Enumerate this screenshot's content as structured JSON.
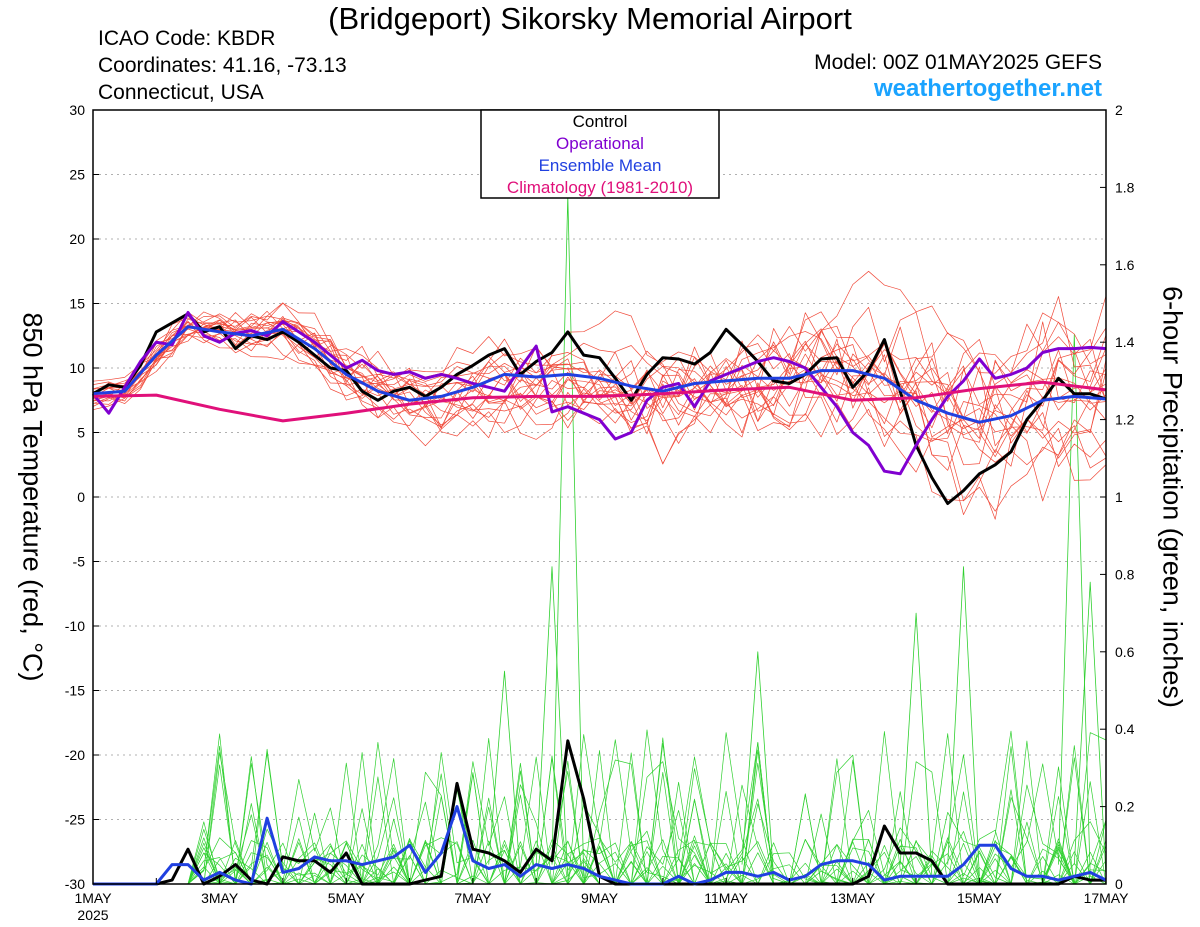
{
  "header": {
    "title": "(Bridgeport) Sikorsky Memorial Airport",
    "icao": "ICAO Code: KBDR",
    "coordinates": "Coordinates: 41.16, -73.13",
    "location": "Connecticut, USA",
    "model": "Model: 00Z 01MAY2025 GEFS",
    "site": "weathertogether.net"
  },
  "chart_data": {
    "type": "line",
    "title": "(Bridgeport) Sikorsky Memorial Airport",
    "ylabel_left": "850 hPa Temperature (red, °C)",
    "ylabel_right": "6-hour Precipitation (green, inches)",
    "xlabel": "",
    "x_unit": "days since 1MAY 00Z (date axis)",
    "ylim_left": [
      -30,
      30
    ],
    "ylim_right": [
      0,
      2
    ],
    "xlim_days": [
      0,
      16
    ],
    "x_tick_labels": [
      {
        "day": 0,
        "label": "1MAY",
        "sub": "2025"
      },
      {
        "day": 2,
        "label": "3MAY"
      },
      {
        "day": 4,
        "label": "5MAY"
      },
      {
        "day": 6,
        "label": "7MAY"
      },
      {
        "day": 8,
        "label": "9MAY"
      },
      {
        "day": 10,
        "label": "11MAY"
      },
      {
        "day": 12,
        "label": "13MAY"
      },
      {
        "day": 14,
        "label": "15MAY"
      },
      {
        "day": 16,
        "label": "17MAY"
      }
    ],
    "left_ticks": [
      30,
      25,
      20,
      15,
      10,
      5,
      0,
      -5,
      -10,
      -15,
      -20,
      -25,
      -30
    ],
    "right_ticks": [
      "2",
      "1.8",
      "1.6",
      "1.4",
      "1.2",
      "1",
      "0.8",
      "0.6",
      "0.4",
      "0.2",
      "0"
    ],
    "grid": "horizontal dotted",
    "legend_position": "top-center",
    "legend": [
      {
        "label": "Control",
        "color": "#000000"
      },
      {
        "label": "Operational",
        "color": "#8000d0"
      },
      {
        "label": "Ensemble Mean",
        "color": "#2040e0"
      },
      {
        "label": "Climatology (1981-2010)",
        "color": "#e0107a"
      }
    ],
    "colors": {
      "members_temp": "#f04a3a",
      "members_precip": "#30d030",
      "control": "#000000",
      "operational": "#8000d0",
      "ensemble_mean": "#2040e0",
      "climatology": "#e0107a"
    },
    "series_temperature": [
      {
        "name": "Control",
        "x": [
          0,
          0.25,
          0.5,
          0.75,
          1,
          1.25,
          1.5,
          1.75,
          2,
          2.25,
          2.5,
          2.75,
          3,
          3.25,
          3.5,
          3.75,
          4,
          4.25,
          4.5,
          4.75,
          5,
          5.25,
          5.5,
          5.75,
          6,
          6.25,
          6.5,
          6.75,
          7,
          7.25,
          7.5,
          7.75,
          8,
          8.25,
          8.5,
          8.75,
          9,
          9.25,
          9.5,
          9.75,
          10,
          10.25,
          10.5,
          10.75,
          11,
          11.25,
          11.5,
          11.75,
          12,
          12.25,
          12.5,
          12.75,
          13,
          13.25,
          13.5,
          13.75,
          14,
          14.25,
          14.5,
          14.75,
          15,
          15.25,
          15.5,
          15.75,
          16
        ],
        "y": [
          8,
          8.7,
          8.5,
          10.2,
          12.8,
          13.5,
          14.2,
          12.8,
          13.2,
          11.5,
          12.5,
          12.2,
          12.8,
          12,
          11,
          10,
          9.8,
          8.2,
          7.5,
          8.2,
          8.5,
          7.8,
          8.5,
          9.5,
          10.2,
          11,
          11.5,
          9.5,
          10.5,
          11.2,
          12.8,
          11,
          10.8,
          9.2,
          7.5,
          9.5,
          10.8,
          10.7,
          10.3,
          11.2,
          13,
          11.8,
          10.5,
          9,
          8.8,
          9.5,
          10.7,
          10.8,
          8.5,
          9.8,
          12.2,
          8.2,
          4,
          1.5,
          -0.5,
          0.5,
          1.8,
          2.5,
          3.5,
          6,
          7.5,
          9.2,
          8,
          8,
          7.6
        ]
      },
      {
        "name": "Operational",
        "x": [
          0,
          0.25,
          0.5,
          0.75,
          1,
          1.25,
          1.5,
          1.75,
          2,
          2.25,
          2.5,
          2.75,
          3,
          3.25,
          3.5,
          3.75,
          4,
          4.25,
          4.5,
          4.75,
          5,
          5.25,
          5.5,
          5.75,
          6,
          6.25,
          6.5,
          6.75,
          7,
          7.25,
          7.5,
          7.75,
          8,
          8.25,
          8.5,
          8.75,
          9,
          9.25,
          9.5,
          9.75,
          10,
          10.25,
          10.5,
          10.75,
          11,
          11.25,
          11.5,
          11.75,
          12,
          12.25,
          12.5,
          12.75,
          13,
          13.25,
          13.5,
          13.75,
          14,
          14.25,
          14.5,
          14.75,
          15,
          15.25,
          15.5,
          15.75,
          16
        ],
        "y": [
          8,
          6.5,
          8.5,
          10.5,
          12,
          11.8,
          14.3,
          12.5,
          12,
          12.7,
          12.9,
          12.5,
          13.6,
          12.8,
          12,
          11,
          10,
          10.6,
          9.8,
          9.5,
          9.7,
          9.2,
          9.5,
          9.2,
          8.8,
          8.5,
          8.2,
          10,
          11.7,
          6.6,
          7,
          6.5,
          6,
          4.5,
          5,
          7.5,
          8.5,
          8.8,
          7,
          9,
          9.5,
          10,
          10.5,
          10.8,
          10.5,
          10,
          8.5,
          7,
          5,
          4,
          2,
          1.8,
          4,
          6,
          7.8,
          9,
          10.7,
          9.2,
          9.5,
          10,
          11.2,
          11.5,
          11.5,
          11.6,
          11.5
        ]
      },
      {
        "name": "Ensemble Mean",
        "x": [
          0,
          0.5,
          1,
          1.5,
          2,
          2.5,
          3,
          3.5,
          4,
          4.5,
          5,
          5.5,
          6,
          6.5,
          7,
          7.5,
          8,
          8.5,
          9,
          9.5,
          10,
          10.5,
          11,
          11.5,
          12,
          12.5,
          13,
          13.5,
          14,
          14.5,
          15,
          15.5,
          16
        ],
        "y": [
          8,
          8.2,
          11,
          13.2,
          12.8,
          12.5,
          13,
          11.5,
          9.5,
          8.2,
          7.5,
          7.8,
          8.5,
          9.5,
          9.3,
          9.5,
          9.2,
          8.6,
          8.2,
          8.8,
          9,
          9.2,
          9.2,
          9.8,
          9.8,
          9.2,
          7.5,
          6.5,
          5.8,
          6.3,
          7.5,
          7.8,
          7.6
        ]
      },
      {
        "name": "Climatology (1981-2010)",
        "x": [
          0,
          1,
          2,
          3,
          4,
          5,
          6,
          7,
          8,
          9,
          10,
          11,
          12,
          13,
          14,
          15,
          16
        ],
        "y": [
          7.8,
          7.9,
          6.8,
          5.9,
          6.5,
          7.2,
          7.7,
          7.8,
          7.8,
          8,
          8.3,
          8.5,
          7.5,
          7.7,
          8.4,
          8.9,
          8.3
        ]
      }
    ],
    "series_precipitation": [
      {
        "name": "Control",
        "x": [
          0,
          0.5,
          1,
          1.25,
          1.5,
          1.75,
          2,
          2.25,
          2.5,
          2.75,
          3,
          3.25,
          3.5,
          3.75,
          4,
          4.25,
          4.5,
          4.75,
          5,
          5.25,
          5.5,
          5.75,
          6,
          6.25,
          6.5,
          6.75,
          7,
          7.25,
          7.5,
          7.75,
          8,
          8.25,
          8.5,
          8.75,
          9,
          9.5,
          10,
          10.5,
          11,
          11.5,
          12,
          12.25,
          12.5,
          12.75,
          13,
          13.25,
          13.5,
          13.75,
          14,
          14.25,
          14.5,
          14.75,
          15,
          15.25,
          15.5,
          15.75,
          16
        ],
        "y": [
          0,
          0,
          0,
          0.01,
          0.09,
          0,
          0.02,
          0.05,
          0.01,
          0,
          0.07,
          0.06,
          0.06,
          0.03,
          0.08,
          0,
          0,
          0,
          0,
          0.01,
          0.02,
          0.26,
          0.09,
          0.08,
          0.06,
          0.03,
          0.09,
          0.06,
          0.37,
          0.22,
          0.02,
          0,
          0,
          0,
          0,
          0,
          0,
          0,
          0,
          0,
          0,
          0.02,
          0.15,
          0.08,
          0.08,
          0.06,
          0,
          0,
          0,
          0,
          0,
          0,
          0,
          0,
          0.02,
          0.01,
          0.01
        ]
      },
      {
        "name": "Ensemble Mean",
        "x": [
          0,
          0.5,
          1,
          1.25,
          1.5,
          1.75,
          2,
          2.25,
          2.5,
          2.75,
          3,
          3.25,
          3.5,
          3.75,
          4,
          4.25,
          4.5,
          4.75,
          5,
          5.25,
          5.5,
          5.75,
          6,
          6.25,
          6.5,
          6.75,
          7,
          7.25,
          7.5,
          7.75,
          8,
          8.25,
          8.5,
          8.75,
          9,
          9.25,
          9.5,
          9.75,
          10,
          10.25,
          10.5,
          10.75,
          11,
          11.25,
          11.5,
          11.75,
          12,
          12.25,
          12.5,
          12.75,
          13,
          13.25,
          13.5,
          13.75,
          14,
          14.25,
          14.5,
          14.75,
          15,
          15.25,
          15.5,
          15.75,
          16
        ],
        "y": [
          0,
          0,
          0,
          0.05,
          0.05,
          0.01,
          0.03,
          0.01,
          0,
          0.17,
          0.03,
          0.04,
          0.07,
          0.06,
          0.06,
          0.05,
          0.06,
          0.07,
          0.1,
          0.03,
          0.08,
          0.2,
          0.06,
          0.04,
          0.05,
          0.02,
          0.05,
          0.04,
          0.05,
          0.04,
          0.02,
          0.01,
          0,
          0,
          0,
          0.02,
          0,
          0.01,
          0.03,
          0.03,
          0.02,
          0.03,
          0.01,
          0.02,
          0.05,
          0.06,
          0.06,
          0.05,
          0.01,
          0.02,
          0.02,
          0.02,
          0.02,
          0.05,
          0.1,
          0.1,
          0.04,
          0.02,
          0.02,
          0.01,
          0.02,
          0.03,
          0.01
        ]
      }
    ]
  }
}
